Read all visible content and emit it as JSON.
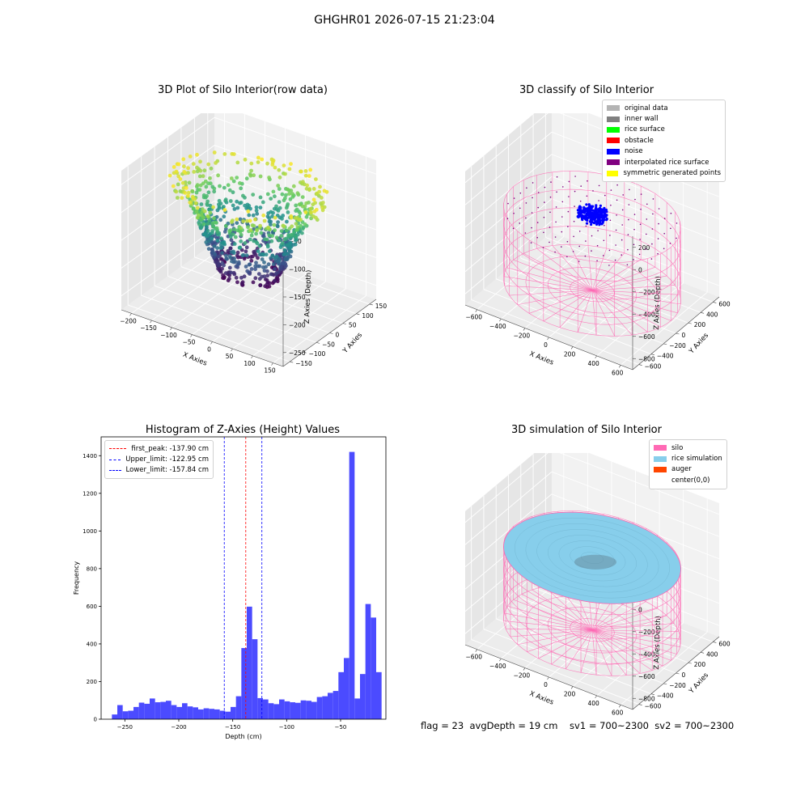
{
  "figure": {
    "suptitle": "GHGHR01 2026-07-15 21:23:04",
    "footer": "flag = 23  avgDepth = 19 cm    sv1 = 700~2300  sv2 = 700~2300"
  },
  "colors": {
    "original_data": "#b4b4b4",
    "inner_wall": "#808080",
    "rice_surface": "#00ff00",
    "obstacle": "#ff0000",
    "noise": "#0000ff",
    "interpolated_rice_surface": "#800080",
    "symmetric_generated_points": "#ffff00",
    "silo": "#ff69b4",
    "rice_simulation": "#87ceeb",
    "auger": "#ff4500",
    "hist_bar": "#4b4bff",
    "peak_line": "#ff0000",
    "limit_line": "#0000ff"
  },
  "panels": {
    "raw": {
      "title": "3D Plot of Silo Interior(row data)",
      "xlabel": "X Axies",
      "ylabel": "Y Axies",
      "zlabel": "Z Axies (Depth)",
      "xticks": [
        "−200",
        "−150",
        "−100",
        "−50",
        "0",
        "50",
        "100",
        "150"
      ],
      "yticks": [
        "−150",
        "−100",
        "−50",
        "0",
        "50",
        "100",
        "150"
      ],
      "zticks": [
        "−50",
        "−100",
        "−150",
        "−200",
        "−250"
      ]
    },
    "classify": {
      "title": "3D classify of Silo Interior",
      "xlabel": "X Axies",
      "ylabel": "Y Axies",
      "zlabel": "Z Axies (Depth)",
      "xticks": [
        "−600",
        "−400",
        "−200",
        "0",
        "200",
        "400",
        "600"
      ],
      "yticks": [
        "−600",
        "−400",
        "−200",
        "0",
        "200",
        "400",
        "600"
      ],
      "zticks": [
        "200",
        "0",
        "−200",
        "−400",
        "−600",
        "−800"
      ],
      "legend": [
        "original data",
        "inner wall",
        "rice surface",
        "obstacle",
        "noise",
        "interpolated rice surface",
        "symmetric generated points"
      ]
    },
    "simulation": {
      "title": "3D simulation of Silo Interior",
      "xlabel": "X Axies",
      "ylabel": "Y Axies",
      "zlabel": "Z Axies (Depth)",
      "xticks": [
        "−600",
        "−400",
        "−200",
        "0",
        "200",
        "400",
        "600"
      ],
      "yticks": [
        "−600",
        "−400",
        "−200",
        "0",
        "200",
        "400",
        "600"
      ],
      "zticks": [
        "200",
        "0",
        "−200",
        "−400",
        "−600",
        "−800"
      ],
      "legend": [
        "silo",
        "rice simulation",
        "auger",
        "center(0,0)"
      ]
    }
  },
  "chart_data": [
    {
      "type": "histogram",
      "title": "Histogram of Z-Axies (Height) Values",
      "xlabel": "Depth (cm)",
      "ylabel": "Frequency",
      "xlim": [
        -272,
        -8
      ],
      "ylim": [
        0,
        1500
      ],
      "xticks": [
        -250,
        -200,
        -150,
        -100,
        -50
      ],
      "xtick_labels": [
        "−250",
        "−200",
        "−150",
        "−100",
        "−50"
      ],
      "yticks": [
        0,
        200,
        400,
        600,
        800,
        1000,
        1200,
        1400
      ],
      "bin_start": -262,
      "bin_width": 5,
      "values": [
        25,
        75,
        42,
        45,
        65,
        88,
        82,
        110,
        90,
        92,
        98,
        75,
        65,
        85,
        68,
        63,
        52,
        58,
        55,
        52,
        45,
        40,
        65,
        122,
        378,
        598,
        425,
        112,
        105,
        85,
        80,
        105,
        95,
        90,
        87,
        100,
        98,
        92,
        118,
        122,
        140,
        150,
        250,
        325,
        1420,
        110,
        240,
        612,
        540,
        250
      ],
      "vlines": [
        {
          "label": "first_peak: -137.90 cm",
          "x": -137.9,
          "style": "dashed",
          "color": "#ff0000"
        },
        {
          "label": "Upper_limit: -122.95 cm",
          "x": -122.95,
          "style": "dashed",
          "color": "#0000ff"
        },
        {
          "label": "Lower_limit: -157.84 cm",
          "x": -157.84,
          "style": "dashed",
          "color": "#0000ff"
        }
      ]
    }
  ]
}
